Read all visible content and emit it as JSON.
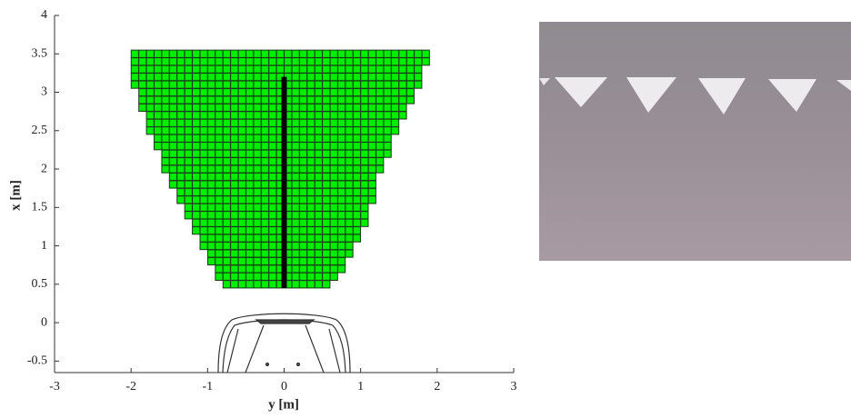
{
  "chart_data": {
    "type": "grid",
    "xlabel": "y [m]",
    "ylabel": "x [m]",
    "xlim": [
      -3,
      3
    ],
    "xticks": [
      -3,
      -2,
      -1,
      0,
      1,
      2,
      3
    ],
    "ylim": [
      -0.65,
      4
    ],
    "yticks": [
      -0.5,
      0,
      0.5,
      1,
      1.5,
      2,
      2.5,
      3,
      3.5,
      4
    ],
    "cell_size": 0.1,
    "color": "#00ee00",
    "edge_color": "#1a3a1a",
    "rows": {
      "x": [
        0.45,
        0.55,
        0.65,
        0.75,
        0.85,
        0.95,
        1.05,
        1.15,
        1.25,
        1.35,
        1.45,
        1.55,
        1.65,
        1.75,
        1.85,
        1.95,
        2.05,
        2.15,
        2.25,
        2.35,
        2.45,
        2.55,
        2.65,
        2.75,
        2.85,
        2.95,
        3.05,
        3.15,
        3.25,
        3.35,
        3.45
      ],
      "left": [
        -0.8,
        -0.9,
        -0.9,
        -1.0,
        -1.0,
        -1.1,
        -1.1,
        -1.2,
        -1.2,
        -1.3,
        -1.3,
        -1.4,
        -1.4,
        -1.5,
        -1.5,
        -1.6,
        -1.6,
        -1.6,
        -1.7,
        -1.7,
        -1.8,
        -1.8,
        -1.8,
        -1.9,
        -1.9,
        -1.9,
        -2.0,
        -2.0,
        -2.0,
        -2.0,
        -2.0
      ],
      "right": [
        0.6,
        0.7,
        0.8,
        0.8,
        0.9,
        0.9,
        1.0,
        1.0,
        1.1,
        1.1,
        1.1,
        1.2,
        1.2,
        1.2,
        1.2,
        1.3,
        1.3,
        1.4,
        1.4,
        1.4,
        1.5,
        1.5,
        1.6,
        1.6,
        1.7,
        1.7,
        1.8,
        1.8,
        1.8,
        1.9,
        1.9
      ]
    },
    "path": {
      "x": [
        0.45,
        3.2
      ],
      "y": [
        0,
        0
      ],
      "color": "#000000"
    }
  }
}
